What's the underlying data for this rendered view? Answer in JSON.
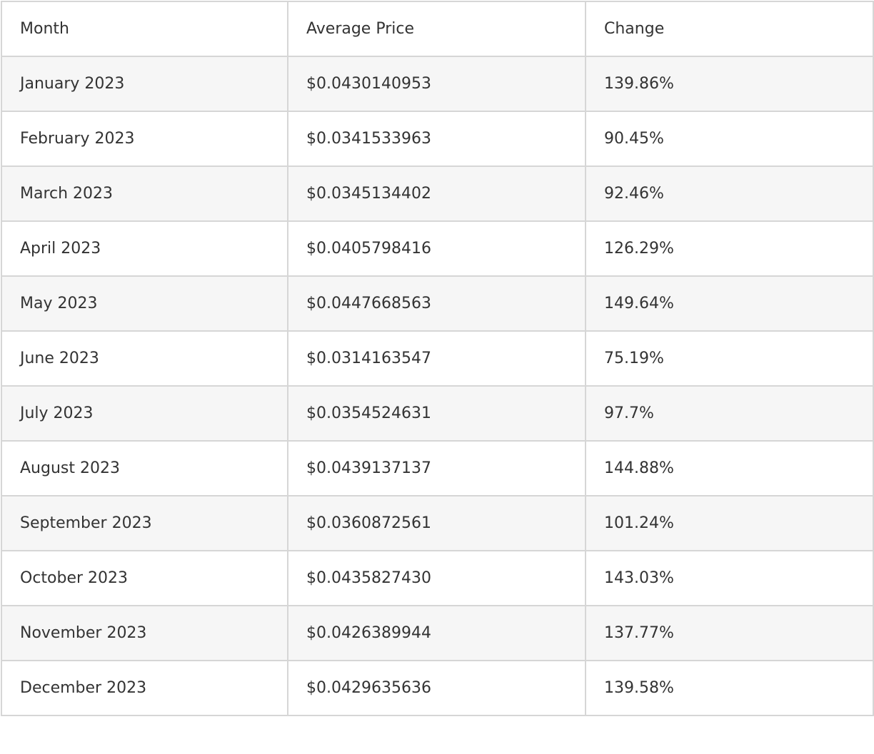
{
  "table": {
    "header": [
      "Month",
      "Average Price",
      "Change"
    ],
    "rows": [
      [
        "January 2023",
        "$0.0430140953",
        "139.86%"
      ],
      [
        "February 2023",
        "$0.0341533963",
        "90.45%"
      ],
      [
        "March 2023",
        "$0.0345134402",
        "92.46%"
      ],
      [
        "April 2023",
        "$0.0405798416",
        "126.29%"
      ],
      [
        "May 2023",
        "$0.0447668563",
        "149.64%"
      ],
      [
        "June 2023",
        "$0.0314163547",
        "75.19%"
      ],
      [
        "July 2023",
        "$0.0354524631",
        "97.7%"
      ],
      [
        "August 2023",
        "$0.0439137137",
        "144.88%"
      ],
      [
        "September 2023",
        "$0.0360872561",
        "101.24%"
      ],
      [
        "October 2023",
        "$0.0435827430",
        "143.03%"
      ],
      [
        "November 2023",
        "$0.0426389944",
        "137.77%"
      ],
      [
        "December 2023",
        "$0.0429635636",
        "139.58%"
      ]
    ]
  }
}
